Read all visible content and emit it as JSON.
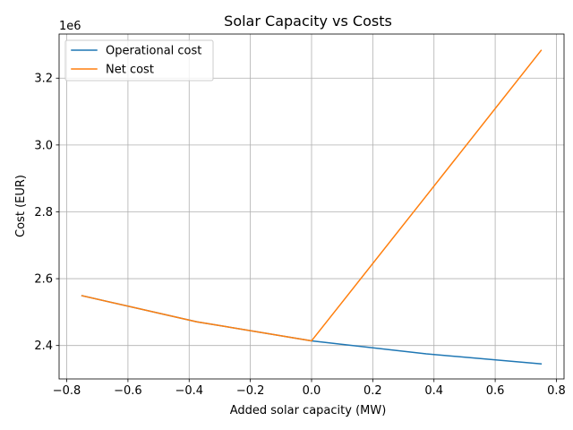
{
  "chart_data": {
    "type": "line",
    "title": "Solar Capacity vs Costs",
    "xlabel": "Added solar capacity (MW)",
    "ylabel": "Cost (EUR)",
    "y_offset_label": "1e6",
    "xlim": [
      -0.825,
      0.825
    ],
    "ylim": [
      2.3,
      3.332
    ],
    "x_ticks": [
      -0.8,
      -0.6,
      -0.4,
      -0.2,
      0.0,
      0.2,
      0.4,
      0.6,
      0.8
    ],
    "x_tick_labels": [
      "−0.8",
      "−0.6",
      "−0.4",
      "−0.2",
      "0.0",
      "0.2",
      "0.4",
      "0.6",
      "0.8"
    ],
    "y_ticks": [
      2.4,
      2.6,
      2.8,
      3.0,
      3.2
    ],
    "y_tick_labels": [
      "2.4",
      "2.6",
      "2.8",
      "3.0",
      "3.2"
    ],
    "grid": true,
    "legend_position": "upper-left",
    "series": [
      {
        "name": "Operational cost",
        "color": "#1f77b4",
        "x": [
          -0.75,
          -0.375,
          0.0,
          0.375,
          0.75
        ],
        "y": [
          2.549,
          2.471,
          2.414,
          2.375,
          2.345
        ]
      },
      {
        "name": "Net cost",
        "color": "#ff7f0e",
        "x": [
          -0.75,
          -0.375,
          0.0,
          0.375,
          0.75
        ],
        "y": [
          2.549,
          2.471,
          2.414,
          2.848,
          3.283
        ]
      }
    ]
  }
}
